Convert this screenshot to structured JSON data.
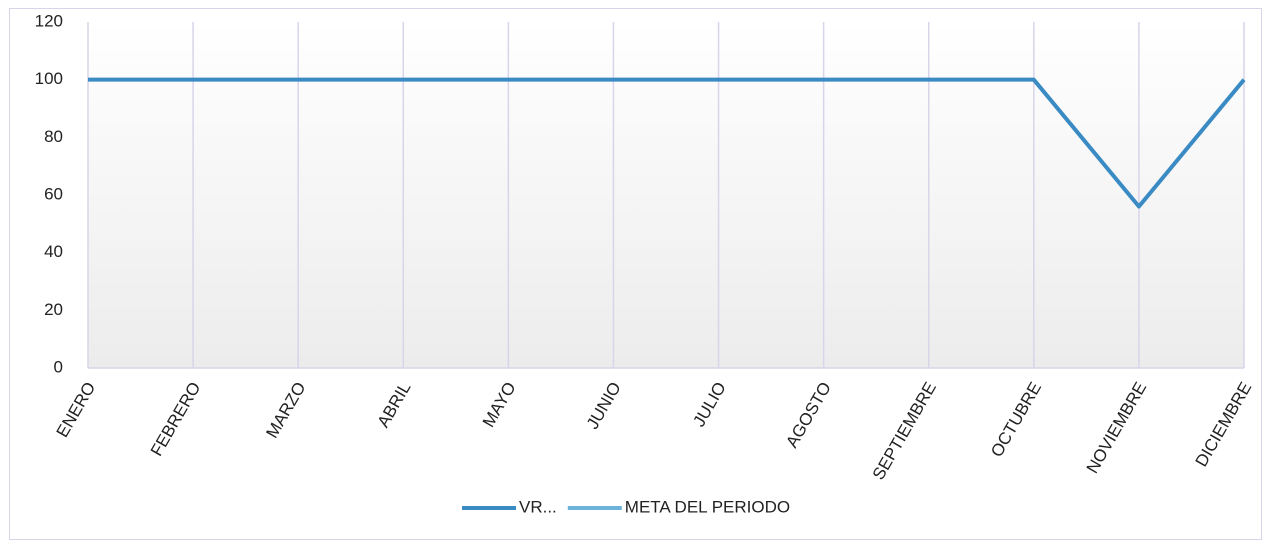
{
  "chart_data": {
    "type": "line",
    "categories": [
      "ENERO",
      "FEBRERO",
      "MARZO",
      "ABRIL",
      "MAYO",
      "JUNIO",
      "JULIO",
      "AGOSTO",
      "SEPTIEMBRE",
      "OCTUBRE",
      "NOVIEMBRE",
      "DICIEMBRE"
    ],
    "series": [
      {
        "name": "VR...",
        "color": "#3a8ac4",
        "values": [
          100,
          100,
          100,
          100,
          100,
          100,
          100,
          100,
          100,
          100,
          56,
          100
        ]
      },
      {
        "name": "META DEL PERIODO",
        "color": "#6cb3d9",
        "values": [
          null,
          null,
          null,
          null,
          null,
          null,
          null,
          null,
          null,
          null,
          null,
          null
        ]
      }
    ],
    "ylim": [
      0,
      120
    ],
    "yticks": [
      0,
      20,
      40,
      60,
      80,
      100,
      120
    ],
    "grid": "x",
    "legend": "bottom"
  }
}
